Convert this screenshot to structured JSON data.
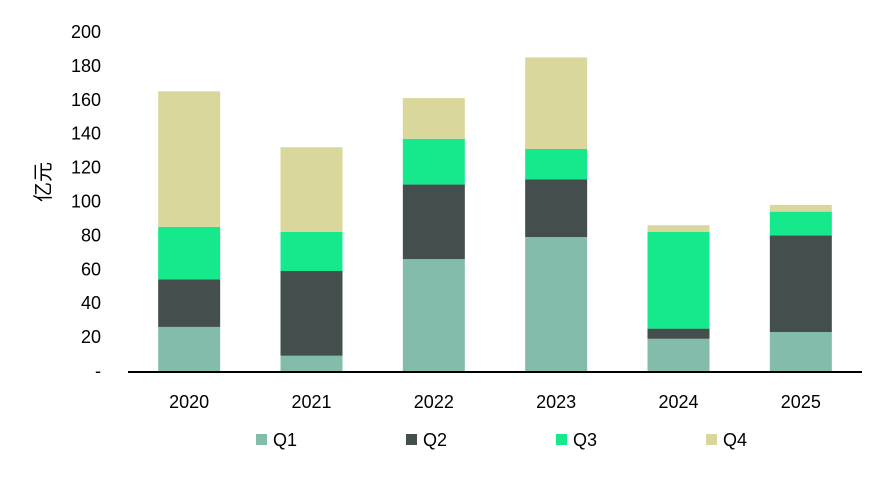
{
  "chart_data": {
    "type": "bar",
    "stacked": true,
    "ylabel": "亿元",
    "ylim": [
      0,
      200
    ],
    "yticks": [
      "-",
      "20",
      "40",
      "60",
      "80",
      "100",
      "120",
      "140",
      "160",
      "180",
      "200"
    ],
    "grid": false,
    "legend": "bottom",
    "categories": [
      "2020",
      "2021",
      "2022",
      "2023",
      "2024",
      "2025"
    ],
    "series": [
      {
        "name": "Q1",
        "color": "#84bcab",
        "values": [
          26,
          9,
          66,
          79,
          19,
          23
        ]
      },
      {
        "name": "Q2",
        "color": "#444f4d",
        "values": [
          28,
          50,
          44,
          34,
          6,
          57
        ]
      },
      {
        "name": "Q3",
        "color": "#16e88c",
        "values": [
          31,
          23,
          27,
          18,
          57,
          14
        ]
      },
      {
        "name": "Q4",
        "color": "#d9d79b",
        "values": [
          80,
          50,
          24,
          54,
          4,
          4
        ]
      }
    ]
  }
}
